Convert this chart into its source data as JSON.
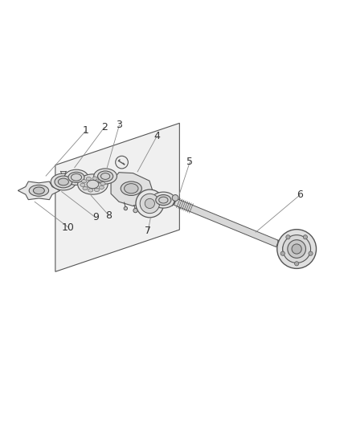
{
  "background_color": "#ffffff",
  "line_color": "#555555",
  "label_color": "#222222",
  "fig_width": 4.38,
  "fig_height": 5.33,
  "dpi": 100,
  "label_fontsize": 9
}
